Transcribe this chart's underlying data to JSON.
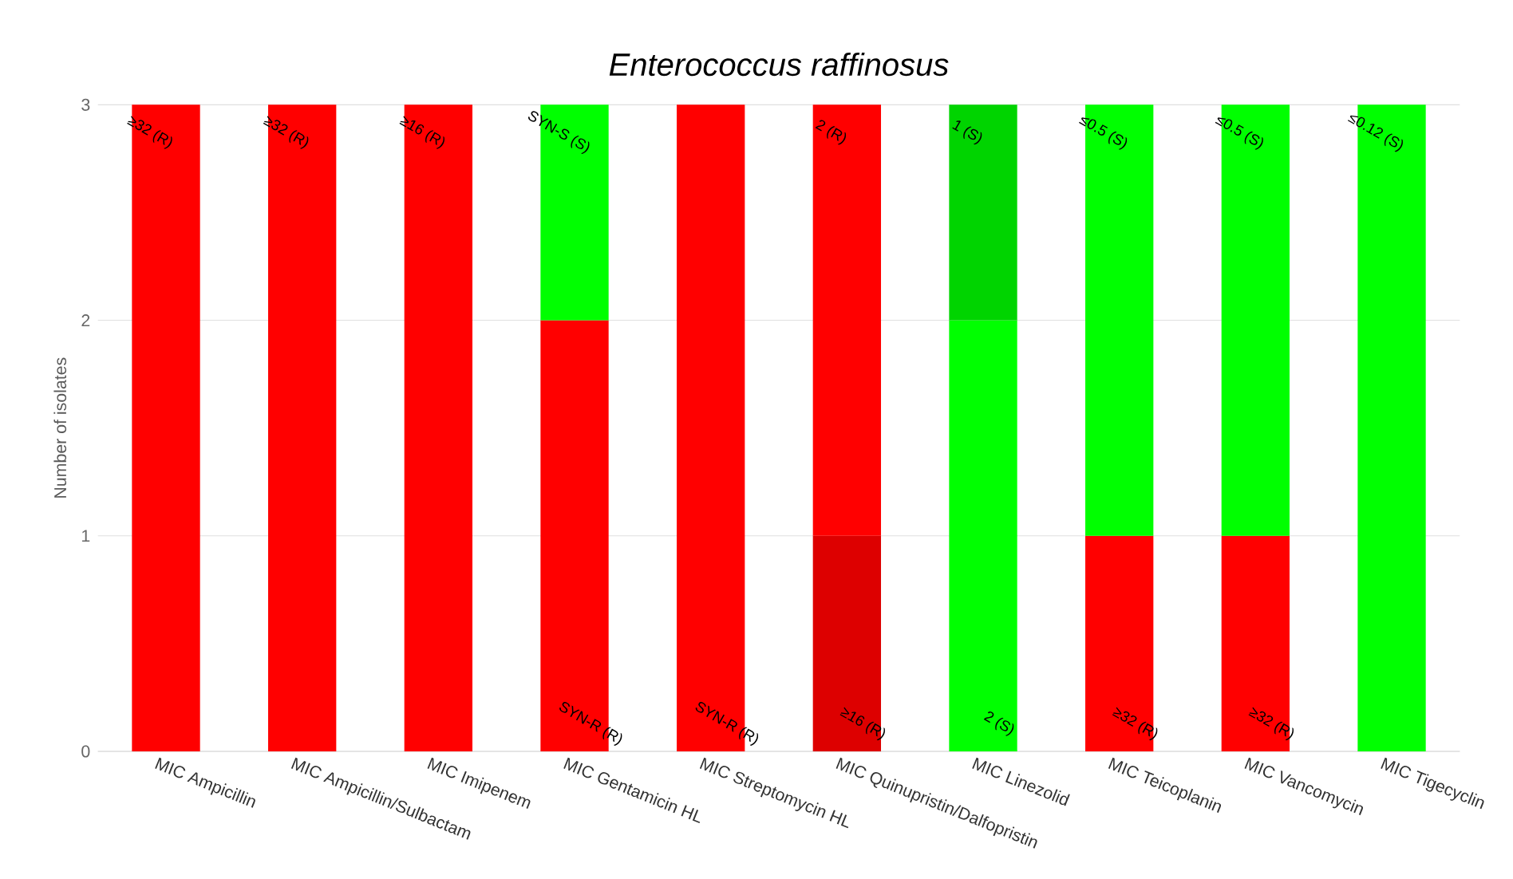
{
  "chart_data": {
    "type": "bar",
    "title": "Enterococcus raffinosus",
    "ylabel": "Number of isolates",
    "categories": [
      "MIC Ampicillin",
      "MIC Ampicillin/Sulbactam",
      "MIC Imipenem",
      "MIC Gentamicin HL",
      "MIC Streptomycin HL",
      "MIC Quinupristin/Dalfopristin",
      "MIC Linezolid",
      "MIC Teicoplanin",
      "MIC Vancomycin",
      "MIC Tigecyclin"
    ],
    "stacked": true,
    "series": [
      {
        "values": [
          null,
          null,
          null,
          2,
          3,
          1,
          2,
          1,
          1,
          null
        ],
        "colors": [
          "#ff0000",
          "#ff0000",
          "#ff0000",
          "#ff0000",
          "#ff0000",
          "#dd0000",
          "#00ff00",
          "#ff0000",
          "#ff0000",
          "#00ff00"
        ],
        "value_labels": [
          null,
          null,
          null,
          "SYN-R (R)",
          "SYN-R (R)",
          "≥16 (R)",
          "2 (S)",
          "≥32 (R)",
          "≥32 (R)",
          null
        ]
      },
      {
        "values": [
          3,
          3,
          3,
          1,
          null,
          2,
          1,
          2,
          2,
          3
        ],
        "colors": [
          "#ff0000",
          "#ff0000",
          "#ff0000",
          "#00ff00",
          "#ff0000",
          "#ff0000",
          "#00d400",
          "#00ff00",
          "#00ff00",
          "#00ff00"
        ],
        "value_labels": [
          "≥32 (R)",
          "≥32 (R)",
          "≥16 (R)",
          "SYN-S (S)",
          null,
          "2 (R)",
          "1 (S)",
          "≤0.5 (S)",
          "≤0.5 (S)",
          "≤0.12 (S)"
        ]
      }
    ],
    "ylim": [
      0,
      3
    ],
    "yticks": [
      0,
      1,
      2,
      3
    ],
    "grid": "y"
  }
}
